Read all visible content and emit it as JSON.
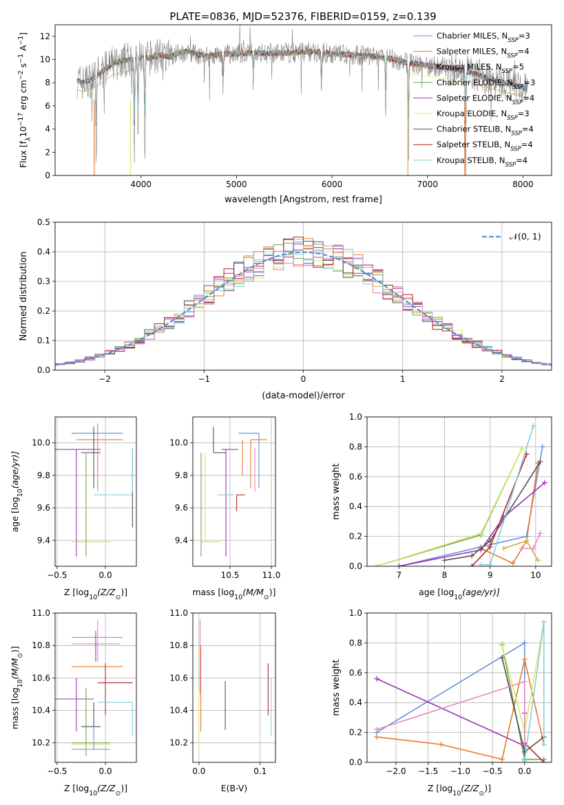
{
  "chart_data": [
    {
      "id": "spectrum",
      "type": "line",
      "title": "PLATE=0836, MJD=52376, FIBERID=0159, z=0.139",
      "xlabel": "wavelength [Angstrom, rest frame]",
      "ylabel": "Flux [f",
      "ylabel_sub": "λ",
      "ylabel_rest": "10",
      "ylabel_sup": "−17",
      "ylabel_units": " erg cm",
      "ylabel_sup2": "−2",
      "ylabel_units2": " s",
      "ylabel_sup3": "−1",
      "ylabel_units3": " A",
      "ylabel_sup4": "−1",
      "ylabel_close": "]",
      "xlim": [
        3100,
        8300
      ],
      "ylim": [
        0,
        13
      ],
      "xticks": [
        "4000",
        "5000",
        "6000",
        "7000",
        "8000"
      ],
      "xtick_values": [
        4000,
        5000,
        6000,
        7000,
        8000
      ],
      "yticks": [
        "0",
        "2",
        "4",
        "6",
        "8",
        "10",
        "12"
      ],
      "ytick_values": [
        0,
        2,
        4,
        6,
        8,
        10,
        12
      ],
      "legend_position": "upper right",
      "legend": [
        {
          "pre": "Chabrier MILES, N",
          "sub": "SSP",
          "post": "=3",
          "color": "#6a8fd8"
        },
        {
          "pre": "Salpeter MILES, N",
          "sub": "SSP",
          "post": "=4",
          "color": "#e8782a"
        },
        {
          "pre": "Kroupa MILES, N",
          "sub": "SSP",
          "post": "=5",
          "color": "#d4a94a"
        },
        {
          "pre": "Chabrier ELODIE, N",
          "sub": "SSP",
          "post": "=3",
          "color": "#6aa84f"
        },
        {
          "pre": "Salpeter ELODIE, N",
          "sub": "SSP",
          "post": "=4",
          "color": "#9b30b5"
        },
        {
          "pre": "Kroupa ELODIE, N",
          "sub": "SSP",
          "post": "=3",
          "color": "#d9e86a"
        },
        {
          "pre": "Chabrier STELIB, N",
          "sub": "SSP",
          "post": "=4",
          "color": "#505050"
        },
        {
          "pre": "Salpeter STELIB, N",
          "sub": "SSP",
          "post": "=4",
          "color": "#b22222"
        },
        {
          "pre": "Kroupa STELIB, N",
          "sub": "SSP",
          "post": "=4",
          "color": "#7fd0dc"
        }
      ],
      "data_color": "#808080",
      "continuum": {
        "x": [
          3330,
          3400,
          3500,
          3600,
          3700,
          3800,
          3900,
          4000,
          4100,
          4200,
          4300,
          4400,
          4500,
          4600,
          4700,
          4800,
          4900,
          5000,
          5200,
          5400,
          5600,
          5800,
          6000,
          6200,
          6400,
          6600,
          6800,
          7000,
          7200,
          7400,
          7600,
          7800,
          8000,
          8050
        ],
        "y": [
          8.2,
          8.0,
          8.4,
          9.0,
          9.6,
          9.9,
          10.0,
          10.2,
          10.1,
          10.4,
          10.2,
          10.6,
          10.7,
          10.4,
          10.3,
          10.4,
          10.5,
          10.5,
          10.6,
          10.5,
          10.6,
          10.7,
          10.5,
          10.4,
          10.3,
          10.1,
          9.7,
          9.5,
          9.3,
          9.0,
          8.5,
          8.0,
          7.6,
          7.4
        ]
      },
      "absorption_dips": [
        {
          "x": 3530,
          "depth": 8.2
        },
        {
          "x": 3930,
          "depth": 10.0
        },
        {
          "x": 3968,
          "depth": 7.5
        },
        {
          "x": 4040,
          "depth": 10.2
        },
        {
          "x": 4860,
          "depth": 3.0
        },
        {
          "x": 5175,
          "depth": 2.5
        },
        {
          "x": 5890,
          "depth": 4.0
        },
        {
          "x": 6563,
          "depth": 5.0
        },
        {
          "x": 6800,
          "depth": 9.7
        },
        {
          "x": 7400,
          "depth": 9.0
        }
      ]
    },
    {
      "id": "residuals",
      "type": "histogram",
      "xlabel": "(data-model)/error",
      "ylabel": "Normed distribution",
      "xlim": [
        -2.5,
        2.5
      ],
      "ylim": [
        0,
        0.5
      ],
      "xticks": [
        "−2",
        "−1",
        "0",
        "1",
        "2"
      ],
      "xtick_values": [
        -2,
        -1,
        0,
        1,
        2
      ],
      "yticks": [
        "0.0",
        "0.1",
        "0.2",
        "0.3",
        "0.4",
        "0.5"
      ],
      "ytick_values": [
        0,
        0.1,
        0.2,
        0.3,
        0.4,
        0.5
      ],
      "grid": true,
      "bin_width": 0.1,
      "gaussian_label": "𝒩(0, 1)",
      "gaussian_color": "#5b8ad6",
      "legend_position": "upper right"
    },
    {
      "id": "age-vs-Z",
      "type": "errorbar",
      "xlabel": "Z [log",
      "xlabel_sub": "10",
      "xlabel_post": "(Z/Z",
      "xlabel_sub2": "⊙",
      "xlabel_close": ")]",
      "ylabel": "age  [log",
      "ylabel_sub": "10",
      "ylabel_post": "(age/yr)]",
      "xlim": [
        -0.52,
        0.32
      ],
      "ylim": [
        9.24,
        10.16
      ],
      "xticks": [
        "−0.5",
        "0.0"
      ],
      "xtick_values": [
        -0.5,
        0.0
      ],
      "yticks": [
        "9.4",
        "9.6",
        "9.8",
        "10.0"
      ],
      "ytick_values": [
        9.4,
        9.6,
        9.8,
        10.0
      ],
      "grid": true
    },
    {
      "id": "age-vs-mass",
      "type": "errorbar",
      "xlabel": "mass [log",
      "xlabel_sub": "10",
      "xlabel_post": "(M/M",
      "xlabel_sub2": "⊙",
      "xlabel_close": ")]",
      "xlim": [
        10.05,
        11.05
      ],
      "ylim": [
        9.24,
        10.16
      ],
      "xticks": [
        "10.5",
        "11.0"
      ],
      "xtick_values": [
        10.5,
        11.0
      ],
      "yticks": [
        "9.4",
        "9.6",
        "9.8",
        "10.0"
      ],
      "ytick_values": [
        9.4,
        9.6,
        9.8,
        10.0
      ],
      "grid": true
    },
    {
      "id": "weight-vs-age",
      "type": "line",
      "xlabel": "age  [log",
      "xlabel_sub": "10",
      "xlabel_post": "(age/yr)]",
      "ylabel": "mass weight",
      "xlim": [
        6.3,
        10.35
      ],
      "ylim": [
        0,
        1.0
      ],
      "xticks": [
        "7",
        "8",
        "9",
        "10"
      ],
      "xtick_values": [
        7,
        8,
        9,
        10
      ],
      "yticks": [
        "0.0",
        "0.2",
        "0.4",
        "0.6",
        "0.8",
        "1.0"
      ],
      "ytick_values": [
        0,
        0.2,
        0.4,
        0.6,
        0.8,
        1.0
      ],
      "grid": true,
      "series": [
        {
          "color": "#6a8fd8",
          "x": [
            7.0,
            8.8,
            9.8,
            10.15
          ],
          "y": [
            0.0,
            0.13,
            0.2,
            0.8
          ]
        },
        {
          "color": "#e8782a",
          "x": [
            8.8,
            9.5,
            9.8,
            10.05
          ],
          "y": [
            0.12,
            0.02,
            0.17,
            0.69
          ]
        },
        {
          "color": "#d4a94a",
          "x": [
            9.3,
            9.8,
            10.05
          ],
          "y": [
            0.12,
            0.17,
            0.04
          ]
        },
        {
          "color": "#6aa84f",
          "x": [
            6.5,
            8.8,
            9.7
          ],
          "y": [
            0.0,
            0.21,
            0.79
          ]
        },
        {
          "color": "#9b30b5",
          "x": [
            7.0,
            8.8,
            9.3,
            10.2
          ],
          "y": [
            0.0,
            0.11,
            0.33,
            0.56
          ]
        },
        {
          "color": "#d9e86a",
          "x": [
            6.5,
            8.8,
            9.7
          ],
          "y": [
            0.0,
            0.22,
            0.79
          ]
        },
        {
          "color": "#505050",
          "x": [
            8.0,
            8.6,
            9.0,
            10.1
          ],
          "y": [
            0.04,
            0.07,
            0.17,
            0.7
          ]
        },
        {
          "color": "#b22222",
          "x": [
            8.6,
            9.0,
            9.8
          ],
          "y": [
            0.0,
            0.13,
            0.75
          ]
        },
        {
          "color": "#7fd0dc",
          "x": [
            8.8,
            9.0,
            9.95
          ],
          "y": [
            0.01,
            0.01,
            0.94
          ]
        },
        {
          "color": "#e388bb",
          "x": [
            9.7,
            9.95,
            10.1
          ],
          "y": [
            0.12,
            0.12,
            0.22
          ]
        }
      ]
    },
    {
      "id": "mass-vs-Z",
      "type": "errorbar",
      "xlabel": "Z [log",
      "xlabel_sub": "10",
      "xlabel_post": "(Z/Z",
      "xlabel_sub2": "⊙",
      "xlabel_close": ")]",
      "ylabel": "mass [log",
      "ylabel_sub": "10",
      "ylabel_post": "(M/M",
      "ylabel_sub2": "⊙",
      "ylabel_close": ")]",
      "xlim": [
        -0.52,
        0.32
      ],
      "ylim": [
        10.08,
        11.0
      ],
      "xticks": [
        "−0.5",
        "0.0"
      ],
      "xtick_values": [
        -0.5,
        0.0
      ],
      "yticks": [
        "10.2",
        "10.4",
        "10.6",
        "10.8",
        "11.0"
      ],
      "ytick_values": [
        10.2,
        10.4,
        10.6,
        10.8,
        11.0
      ],
      "grid": true
    },
    {
      "id": "mass-vs-EBV",
      "type": "errorbar",
      "xlabel": "E(B-V)",
      "xlim": [
        -0.01,
        0.125
      ],
      "ylim": [
        10.08,
        11.0
      ],
      "xticks": [
        "0.0",
        "0.1"
      ],
      "xtick_values": [
        0.0,
        0.1
      ],
      "yticks": [
        "10.2",
        "10.4",
        "10.6",
        "10.8",
        "11.0"
      ],
      "ytick_values": [
        10.2,
        10.4,
        10.6,
        10.8,
        11.0
      ],
      "grid": true
    },
    {
      "id": "weight-vs-Z",
      "type": "line",
      "xlabel": "Z [log",
      "xlabel_sub": "10",
      "xlabel_post": "(Z/Z",
      "xlabel_sub2": "⊙",
      "xlabel_close": ")]",
      "ylabel": "mass weight",
      "xlim": [
        -2.45,
        0.42
      ],
      "ylim": [
        0,
        1.0
      ],
      "xticks": [
        "−2.0",
        "−1.5",
        "−1.0",
        "−0.5",
        "0.0"
      ],
      "xtick_values": [
        -2.0,
        -1.5,
        -1.0,
        -0.5,
        0.0
      ],
      "yticks": [
        "0.0",
        "0.2",
        "0.4",
        "0.6",
        "0.8",
        "1.0"
      ],
      "ytick_values": [
        0,
        0.2,
        0.4,
        0.6,
        0.8,
        1.0
      ],
      "grid": true,
      "series": [
        {
          "color": "#6a8fd8",
          "x": [
            -2.3,
            0.0,
            0.0
          ],
          "y": [
            0.2,
            0.8,
            0.02
          ]
        },
        {
          "color": "#e8782a",
          "x": [
            -2.3,
            -1.3,
            -0.35,
            0.0,
            0.3
          ],
          "y": [
            0.17,
            0.12,
            0.02,
            0.69,
            0.12
          ]
        },
        {
          "color": "#6aa84f",
          "x": [
            -0.35,
            0.0,
            0.3
          ],
          "y": [
            0.79,
            0.02,
            0.02
          ]
        },
        {
          "color": "#9b30b5",
          "x": [
            -2.3,
            0.0,
            0.0
          ],
          "y": [
            0.56,
            0.11,
            0.33
          ]
        },
        {
          "color": "#d9e86a",
          "x": [
            -0.35,
            0.0,
            0.3
          ],
          "y": [
            0.78,
            0.21,
            0.94
          ]
        },
        {
          "color": "#505050",
          "x": [
            -0.35,
            0.0,
            0.3
          ],
          "y": [
            0.7,
            0.07,
            0.17
          ]
        },
        {
          "color": "#b22222",
          "x": [
            0.0,
            0.3
          ],
          "y": [
            0.13,
            0.0
          ]
        },
        {
          "color": "#7fd0dc",
          "x": [
            0.0,
            0.3,
            0.3
          ],
          "y": [
            0.01,
            0.94,
            0.12
          ]
        },
        {
          "color": "#e388bb",
          "x": [
            -2.3,
            0.0,
            0.0
          ],
          "y": [
            0.22,
            0.54,
            0.12
          ]
        }
      ]
    }
  ],
  "errorbars": {
    "colors": [
      "#6a8fd8",
      "#e8782a",
      "#d4a94a",
      "#6aa84f",
      "#9b30b5",
      "#d9e86a",
      "#505050",
      "#b22222",
      "#7fd0dc",
      "#e388bb"
    ],
    "Z": [
      {
        "c": 0,
        "Z": -0.1,
        "Zerr": [
          -0.35,
          0.2
        ]
      },
      {
        "c": 1,
        "Z": -0.08,
        "Zerr": [
          -0.35,
          0.18
        ]
      },
      {
        "c": 3,
        "Z": -0.22,
        "Zerr": [
          -0.35,
          0.05
        ]
      },
      {
        "c": 4,
        "Z": -0.3,
        "Zerr": [
          -0.52,
          -0.05
        ]
      },
      {
        "c": 5,
        "Z": -0.2,
        "Zerr": [
          -0.35,
          -0.05
        ]
      },
      {
        "c": 6,
        "Z": -0.12,
        "Zerr": [
          -0.25,
          -0.05
        ]
      },
      {
        "c": 7,
        "Z": 0.0,
        "Zerr": [
          -0.12,
          0.1
        ]
      },
      {
        "c": 8,
        "Z": 0.3,
        "Zerr": [
          -0.12,
          0.3
        ]
      },
      {
        "c": 9,
        "Z": -0.1,
        "Zerr": [
          -0.35,
          0.15
        ]
      }
    ]
  }
}
